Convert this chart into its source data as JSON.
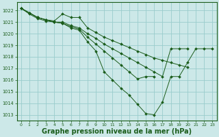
{
  "background_color": "#cce8e8",
  "grid_color": "#99cccc",
  "line_color": "#1a5c1a",
  "marker_color": "#1a5c1a",
  "xlabel": "Graphe pression niveau de la mer (hPa)",
  "xlabel_fontsize": 7,
  "ylim": [
    1012.5,
    1022.7
  ],
  "xlim": [
    -0.5,
    23.5
  ],
  "yticks": [
    1013,
    1014,
    1015,
    1016,
    1017,
    1018,
    1019,
    1020,
    1021,
    1022
  ],
  "xticks": [
    0,
    1,
    2,
    3,
    4,
    5,
    6,
    7,
    8,
    9,
    10,
    11,
    12,
    13,
    14,
    15,
    16,
    17,
    18,
    19,
    20,
    21,
    22,
    23
  ],
  "series": [
    {
      "x": [
        0,
        1,
        2,
        3,
        4,
        5,
        6,
        7,
        8,
        9,
        10,
        11,
        12,
        13,
        14,
        15,
        16,
        17,
        18,
        19,
        20,
        21,
        22,
        23
      ],
      "y": [
        1022.2,
        1021.8,
        1021.4,
        1021.2,
        1021.1,
        1021.7,
        1021.4,
        1021.4,
        1020.5,
        1020.1,
        1019.7,
        1019.4,
        1019.1,
        1018.8,
        1018.5,
        1018.2,
        1017.9,
        1017.7,
        1017.5,
        1017.3,
        1017.1,
        null,
        null,
        null
      ]
    },
    {
      "x": [
        0,
        1,
        2,
        3,
        4,
        5,
        6,
        7,
        8,
        9,
        10,
        11,
        12,
        13,
        14,
        15,
        16,
        17,
        18,
        19,
        20,
        21,
        22,
        23
      ],
      "y": [
        1022.2,
        1021.8,
        1021.4,
        1021.2,
        1021.0,
        1021.0,
        1020.7,
        1020.5,
        1020.0,
        1019.6,
        1019.1,
        1018.7,
        1018.3,
        1017.9,
        1017.5,
        1017.1,
        1016.7,
        1016.3,
        1018.7,
        1018.7,
        1018.7,
        null,
        null,
        null
      ]
    },
    {
      "x": [
        0,
        1,
        2,
        3,
        4,
        5,
        6,
        7,
        8,
        9,
        10,
        11,
        12,
        13,
        14,
        15,
        16,
        17,
        18,
        19,
        20,
        21,
        22,
        23
      ],
      "y": [
        1022.2,
        1021.8,
        1021.4,
        1021.2,
        1021.0,
        1020.9,
        1020.6,
        1020.4,
        1019.7,
        1019.1,
        1018.5,
        1017.9,
        1017.3,
        1016.7,
        1016.1,
        1016.3,
        1016.3,
        null,
        null,
        null,
        null,
        null,
        null,
        null
      ]
    },
    {
      "x": [
        0,
        1,
        2,
        3,
        4,
        5,
        6,
        7,
        8,
        9,
        10,
        11,
        12,
        13,
        14,
        15,
        16,
        17,
        18,
        19,
        20,
        21,
        22,
        23
      ],
      "y": [
        1022.2,
        1021.7,
        1021.3,
        1021.1,
        1021.0,
        1020.9,
        1020.5,
        1020.3,
        1019.3,
        1018.5,
        1016.7,
        1016.0,
        1015.3,
        1014.7,
        1013.9,
        1013.1,
        1013.0,
        1014.1,
        1016.3,
        1016.3,
        1017.5,
        1018.7,
        1018.7,
        1018.7
      ]
    }
  ]
}
